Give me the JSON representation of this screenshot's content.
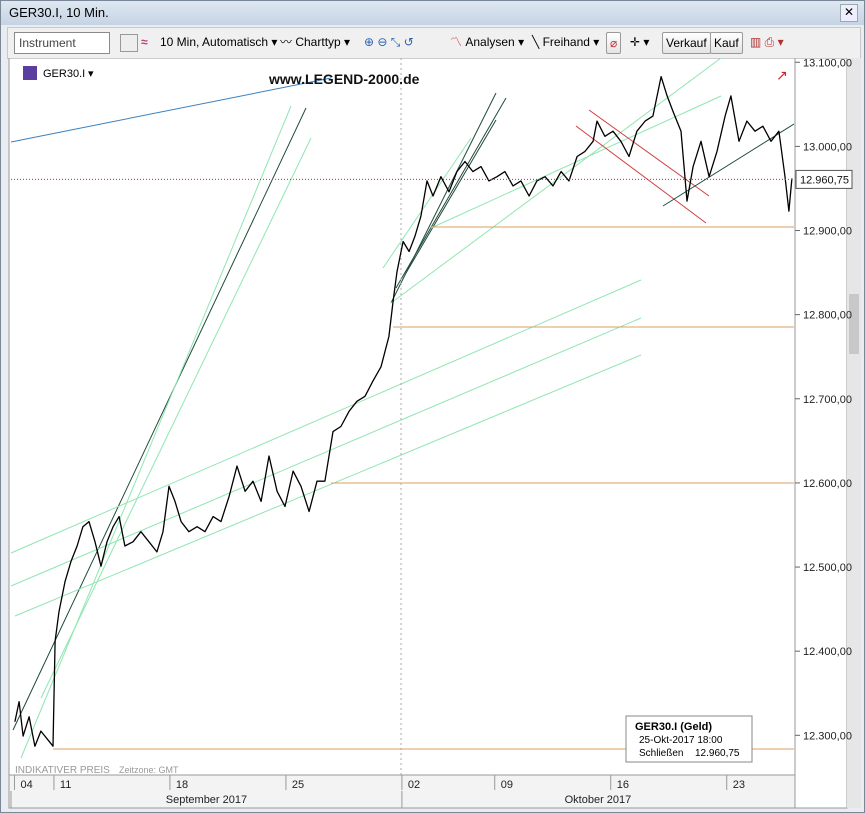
{
  "window": {
    "title": "GER30.I, 10 Min."
  },
  "toolbar": {
    "instrument": "Instrument",
    "interval": "10 Min,  Automatisch",
    "charttype": "Charttyp",
    "analysen": "Analysen",
    "freihand": "Freihand",
    "sell": "Verkauf",
    "buy": "Kauf"
  },
  "info_box": {
    "title": "GER30.I (Geld)",
    "date": "25-Okt-2017 18:00",
    "close_label": "Schließen",
    "close": "12.960,75"
  },
  "chart_data": {
    "type": "line",
    "instrument": "GER30.I",
    "watermark": "www.LEGEND-2000.de",
    "note": "INDIKATIVER PREIS",
    "timezone": "Zeitzone: GMT",
    "x": [
      3.32,
      3.5,
      3.67,
      3.93,
      4.18,
      4.44,
      4.79,
      4.96,
      5.05,
      5.22,
      5.48,
      5.74,
      6.0,
      6.25,
      6.51,
      6.77,
      7.03,
      7.29,
      7.55,
      7.81,
      8.06,
      8.41,
      8.75,
      9.1,
      9.44,
      9.7,
      9.96,
      10.22,
      10.48,
      10.82,
      11.17,
      11.51,
      11.86,
      12.2,
      12.55,
      12.89,
      13.24,
      13.58,
      13.93,
      14.27,
      14.62,
      14.96,
      15.31,
      15.65,
      16.0,
      16.34,
      16.68,
      17.03,
      17.37,
      17.72,
      18.06,
      18.41,
      18.75,
      19.1,
      19.44,
      19.62,
      19.79,
      20.05,
      20.31,
      20.56,
      20.82,
      21.08,
      21.34,
      21.68,
      22.03,
      22.37,
      22.72,
      23.06,
      23.41,
      23.75,
      24.1,
      24.44,
      24.79,
      25.13,
      25.48,
      25.82,
      26.17,
      26.51,
      26.86,
      27.2,
      27.55,
      27.89,
      28.24,
      28.41,
      28.75,
      29.1,
      29.44,
      29.79,
      30.13,
      30.48,
      30.82,
      31.17,
      31.43,
      31.68,
      32.03,
      32.29,
      32.55,
      32.89,
      33.24,
      33.58,
      33.93,
      34.18,
      34.53,
      34.87,
      35.22,
      35.56,
      35.91,
      36.25,
      36.51,
      36.68,
      36.81
    ],
    "series": [
      {
        "name": "GER30.I",
        "color": "#000000",
        "values": [
          12316,
          12340,
          12299,
          12322,
          12287,
          12305,
          12293,
          12287,
          12412,
          12447,
          12483,
          12507,
          12525,
          12548,
          12554,
          12530,
          12501,
          12530,
          12548,
          12560,
          12525,
          12530,
          12542,
          12530,
          12518,
          12542,
          12596,
          12578,
          12554,
          12542,
          12548,
          12542,
          12560,
          12554,
          12584,
          12620,
          12590,
          12602,
          12578,
          12632,
          12590,
          12572,
          12614,
          12596,
          12566,
          12602,
          12602,
          12661,
          12667,
          12685,
          12697,
          12703,
          12721,
          12738,
          12774,
          12816,
          12851,
          12887,
          12875,
          12893,
          12917,
          12959,
          12941,
          12964,
          12946,
          12970,
          12982,
          12970,
          12976,
          12959,
          12964,
          12970,
          12953,
          12959,
          12941,
          12959,
          12964,
          12953,
          12970,
          12959,
          12988,
          12994,
          13006,
          13030,
          13012,
          13018,
          13006,
          12988,
          13018,
          13030,
          13036,
          13083,
          13060,
          13042,
          13018,
          12935,
          12976,
          13006,
          12964,
          12994,
          13036,
          13060,
          13006,
          13030,
          13018,
          13024,
          13006,
          13018,
          12964,
          12923,
          12962
        ]
      }
    ],
    "last_price": {
      "value": 12960.75,
      "label": "12.960,75"
    },
    "last_price_color": "#c03030",
    "xlim": [
      3.15,
      36.9
    ],
    "xticks": [
      {
        "value": 3.3,
        "label": "04"
      },
      {
        "value": 5,
        "label": "11"
      },
      {
        "value": 10,
        "label": "18"
      },
      {
        "value": 15,
        "label": "25"
      },
      {
        "value": 20,
        "label": "02"
      },
      {
        "value": 24,
        "label": "09"
      },
      {
        "value": 29,
        "label": "16"
      },
      {
        "value": 34,
        "label": "23"
      }
    ],
    "x_groups": [
      {
        "label": "September 2017",
        "start": 3.15,
        "end": 20
      },
      {
        "label": "Oktober 2017",
        "start": 20,
        "end": 36.9
      }
    ],
    "ylim": [
      12254,
      13111
    ],
    "yticks": [
      {
        "value": 12300,
        "label": "12.300,00"
      },
      {
        "value": 12400,
        "label": "12.400,00"
      },
      {
        "value": 12500,
        "label": "12.500,00"
      },
      {
        "value": 12600,
        "label": "12.600,00"
      },
      {
        "value": 12700,
        "label": "12.700,00"
      },
      {
        "value": 12800,
        "label": "12.800,00"
      },
      {
        "value": 12900,
        "label": "12.900,00"
      },
      {
        "value": 13000,
        "label": "13.000,00"
      },
      {
        "value": 13100,
        "label": "13.100,00"
      }
    ]
  }
}
